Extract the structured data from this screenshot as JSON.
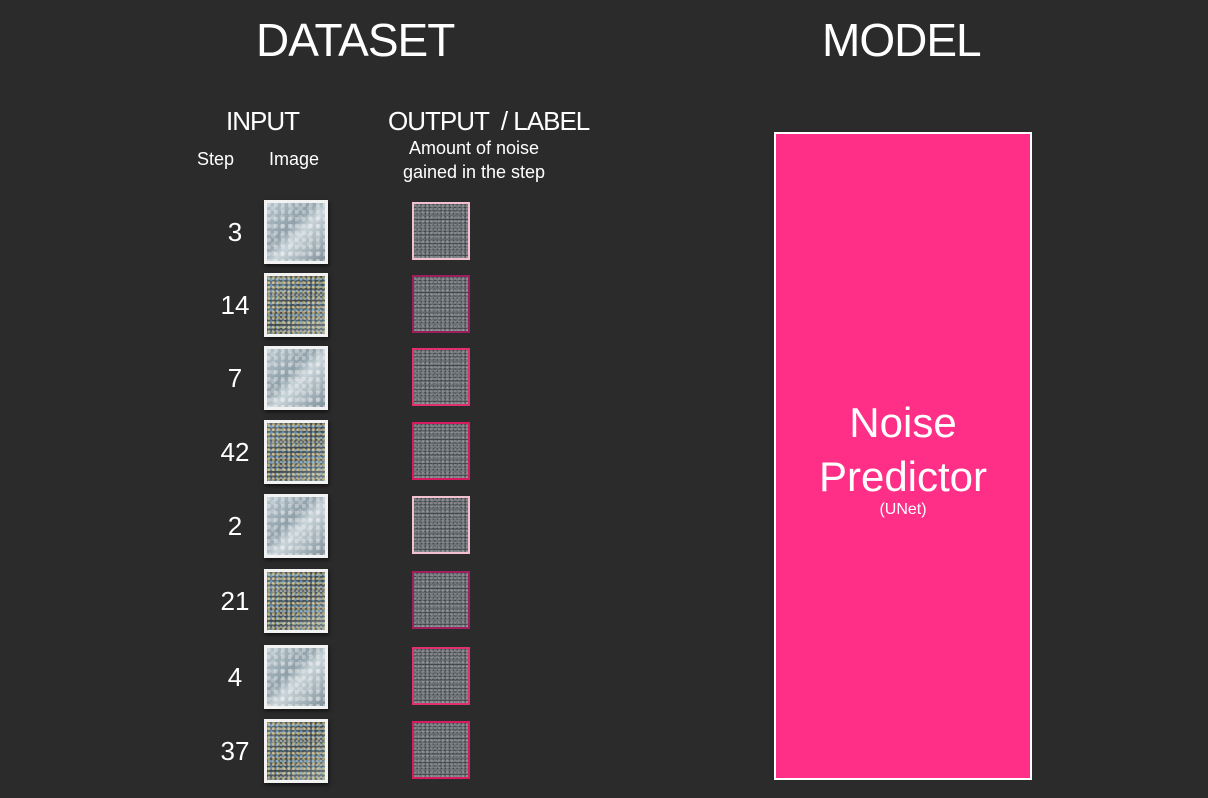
{
  "dataset": {
    "title": "DATASET",
    "input_header": "INPUT",
    "output_header": "OUTPUT  / LABEL",
    "step_header": "Step",
    "image_header": "Image",
    "label_desc_line1": "Amount of noise",
    "label_desc_line2": "gained in the step",
    "rows": [
      {
        "step": "3",
        "image_noise": "light",
        "label_border": "#f3c0d0"
      },
      {
        "step": "14",
        "image_noise": "dark",
        "label_border": "#9a1f5a"
      },
      {
        "step": "7",
        "image_noise": "light",
        "label_border": "#e0306f"
      },
      {
        "step": "42",
        "image_noise": "dark",
        "label_border": "#d81b60"
      },
      {
        "step": "2",
        "image_noise": "light",
        "label_border": "#f3c0d0"
      },
      {
        "step": "21",
        "image_noise": "dark",
        "label_border": "#a0205e"
      },
      {
        "step": "4",
        "image_noise": "light",
        "label_border": "#e0306f"
      },
      {
        "step": "37",
        "image_noise": "dark",
        "label_border": "#d81b60"
      }
    ]
  },
  "model": {
    "title": "MODEL",
    "name_line1": "Noise",
    "name_line2": "Predictor",
    "subtitle": "(UNet)",
    "box_color": "#ff2f88"
  }
}
